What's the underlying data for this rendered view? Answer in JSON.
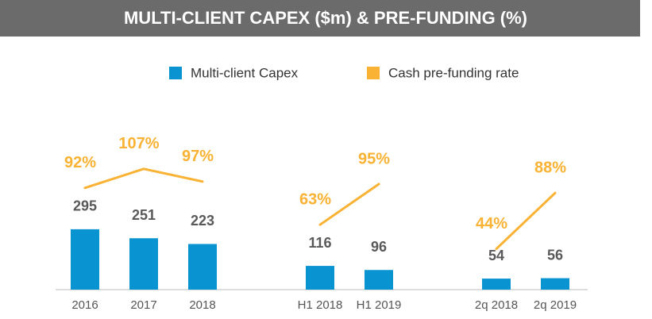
{
  "chart_data": {
    "type": "bar_line",
    "title": "MULTI-CLIENT CAPEX ($m) & PRE-FUNDING (%)",
    "categories": [
      "2016",
      "2017",
      "2018",
      null,
      "H1 2018",
      "H1 2019",
      null,
      "2q 2018",
      "2q 2019"
    ],
    "series": [
      {
        "name": "Multi-client Capex",
        "color": "#0a93d1",
        "type": "bar",
        "values": [
          295,
          251,
          223,
          null,
          116,
          96,
          null,
          54,
          56
        ]
      },
      {
        "name": "Cash pre-funding rate",
        "color": "#f9b233",
        "type": "line",
        "axis": "y2",
        "values": [
          92,
          107,
          97,
          null,
          63,
          95,
          null,
          44,
          88
        ],
        "value_labels": [
          "92%",
          "107%",
          "97%",
          null,
          "63%",
          "95%",
          null,
          "44%",
          "88%"
        ]
      }
    ],
    "ylim": [
      0,
      1000
    ],
    "y2lim": [
      0,
      150
    ]
  }
}
